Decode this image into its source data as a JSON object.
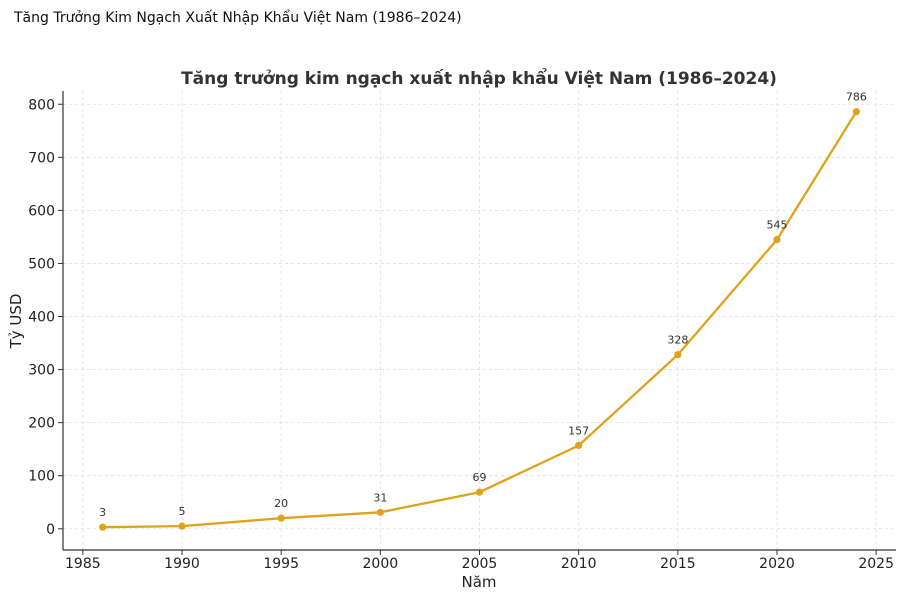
{
  "page": {
    "header": "Tăng Trưởng Kim Ngạch Xuất Nhập Khẩu Việt Nam (1986–2024)"
  },
  "colors": {
    "line": "#E0A21A",
    "grid": "#DDDDDD",
    "axis": "#333333"
  },
  "chart_data": {
    "type": "line",
    "title": "Tăng trưởng kim ngạch xuất nhập khẩu Việt Nam (1986–2024)",
    "xlabel": "Năm",
    "ylabel": "Tỷ USD",
    "xlim": [
      1984,
      2026
    ],
    "ylim": [
      -40,
      825
    ],
    "xticks": [
      1985,
      1990,
      1995,
      2000,
      2005,
      2010,
      2015,
      2020,
      2025
    ],
    "yticks": [
      0,
      100,
      200,
      300,
      400,
      500,
      600,
      700,
      800
    ],
    "grid": true,
    "grid_style": "dashed",
    "markers": true,
    "data_labels": true,
    "x": [
      1986,
      1990,
      1995,
      2000,
      2005,
      2010,
      2015,
      2020,
      2024
    ],
    "y": [
      3,
      5,
      20,
      31,
      69,
      157,
      328,
      545,
      786
    ],
    "labels": [
      "3",
      "5",
      "20",
      "31",
      "69",
      "157",
      "328",
      "545",
      "786"
    ]
  }
}
